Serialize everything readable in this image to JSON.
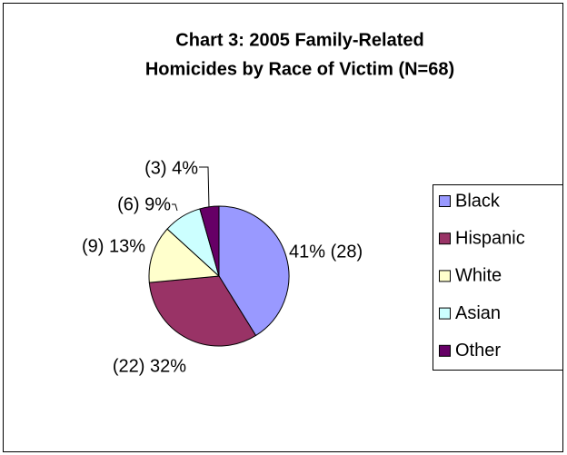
{
  "chart_data": {
    "type": "pie",
    "title": [
      "Chart 3: 2005 Family-Related",
      "Homicides by Race of Victim (N=68)"
    ],
    "categories": [
      "Black",
      "Hispanic",
      "White",
      "Asian",
      "Other"
    ],
    "values": [
      28,
      22,
      9,
      6,
      3
    ],
    "value_labels": [
      "41% (28)",
      "(22) 32%",
      "(9) 13%",
      "(6) 9%",
      "(3) 4%"
    ],
    "colors": [
      "#9999ff",
      "#993366",
      "#ffffcc",
      "#ccffff",
      "#660066"
    ],
    "legend": "right"
  }
}
